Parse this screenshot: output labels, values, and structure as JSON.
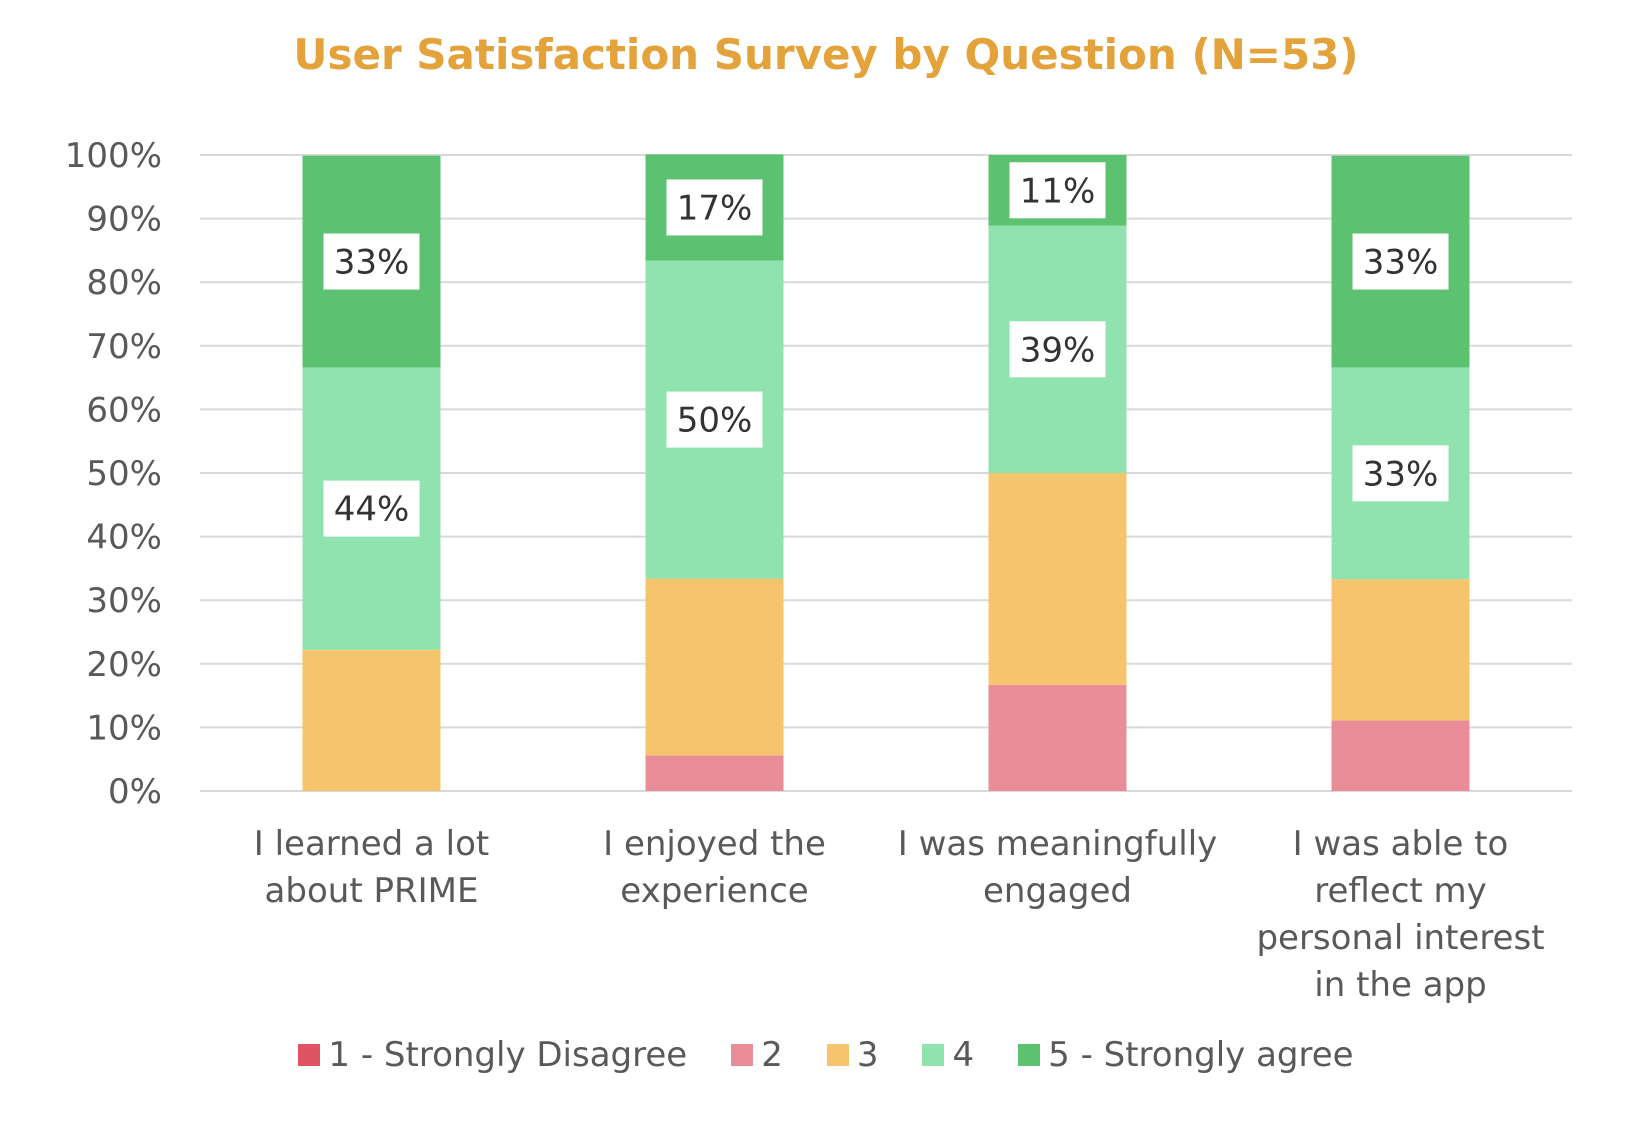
{
  "chart_data": {
    "type": "bar",
    "stacked": true,
    "title": "User Satisfaction Survey by Question (N=53)",
    "categories": [
      [
        "I learned a lot",
        "about PRIME"
      ],
      [
        "I enjoyed the",
        "experience"
      ],
      [
        "I was meaningfully",
        "engaged"
      ],
      [
        "I was able to",
        "reflect my",
        "personal interest",
        "in the app"
      ]
    ],
    "series": [
      {
        "name": "1 - Strongly Disagree",
        "color": "#E05365",
        "values": [
          0,
          0,
          0,
          0
        ]
      },
      {
        "name": "2",
        "color": "#E98E99",
        "values": [
          0,
          5.6,
          16.7,
          11.1
        ]
      },
      {
        "name": "3",
        "color": "#F5C46C",
        "values": [
          22.2,
          27.8,
          33.3,
          22.2
        ]
      },
      {
        "name": "4",
        "color": "#90E3AE",
        "values": [
          44.4,
          50.0,
          38.9,
          33.3
        ]
      },
      {
        "name": "5 - Strongly agree",
        "color": "#5DC172",
        "values": [
          33.3,
          16.7,
          11.1,
          33.3
        ]
      }
    ],
    "data_labels": [
      {
        "category": 0,
        "series": 3,
        "text": "44%"
      },
      {
        "category": 0,
        "series": 4,
        "text": "33%"
      },
      {
        "category": 1,
        "series": 3,
        "text": "50%"
      },
      {
        "category": 1,
        "series": 4,
        "text": "17%"
      },
      {
        "category": 2,
        "series": 3,
        "text": "39%"
      },
      {
        "category": 2,
        "series": 4,
        "text": "11%"
      },
      {
        "category": 3,
        "series": 3,
        "text": "33%"
      },
      {
        "category": 3,
        "series": 4,
        "text": "33%"
      }
    ],
    "y_ticks": [
      "0%",
      "10%",
      "20%",
      "30%",
      "40%",
      "50%",
      "60%",
      "70%",
      "80%",
      "90%",
      "100%"
    ],
    "ylim": [
      0,
      100
    ],
    "grid": true,
    "legend_position": "bottom"
  }
}
